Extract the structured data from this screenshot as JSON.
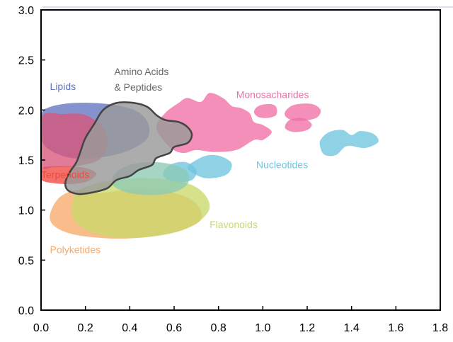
{
  "chart_data": {
    "type": "area",
    "title": "",
    "xlabel": "",
    "ylabel": "",
    "xlim": [
      0.0,
      1.8
    ],
    "ylim": [
      0.0,
      3.0
    ],
    "x_ticks": [
      "0.0",
      "0.2",
      "0.4",
      "0.6",
      "0.8",
      "1.0",
      "1.2",
      "1.4",
      "1.6",
      "1.8"
    ],
    "y_ticks": [
      "0.0",
      "0.5",
      "1.0",
      "1.5",
      "2.0",
      "2.5",
      "3.0"
    ],
    "grid": false,
    "legend": "none",
    "series": [
      {
        "name": "Polyketides",
        "color": "#f7a96a",
        "label": {
          "text": "Polyketides",
          "x": 0.04,
          "y": 0.57
        },
        "blobs": [
          [
            [
              0.04,
              0.95
            ],
            [
              0.08,
              1.12
            ],
            [
              0.16,
              1.2
            ],
            [
              0.26,
              1.17
            ],
            [
              0.38,
              1.2
            ],
            [
              0.5,
              1.2
            ],
            [
              0.6,
              1.17
            ],
            [
              0.68,
              1.1
            ],
            [
              0.72,
              1.0
            ],
            [
              0.72,
              0.9
            ],
            [
              0.66,
              0.82
            ],
            [
              0.56,
              0.76
            ],
            [
              0.42,
              0.72
            ],
            [
              0.28,
              0.72
            ],
            [
              0.14,
              0.76
            ],
            [
              0.06,
              0.84
            ]
          ]
        ]
      },
      {
        "name": "Terpenoids",
        "color": "#ee4a3f",
        "label": {
          "text": "Terpenoids",
          "x": 0.0,
          "y": 1.32
        },
        "blobs": [
          [
            [
              0.0,
              1.3
            ],
            [
              0.0,
              1.42
            ],
            [
              0.1,
              1.44
            ],
            [
              0.2,
              1.42
            ],
            [
              0.25,
              1.36
            ],
            [
              0.2,
              1.28
            ],
            [
              0.1,
              1.26
            ]
          ]
        ]
      },
      {
        "name": "Lipids",
        "color": "#6275c0",
        "label": {
          "text": "Lipids",
          "x": 0.04,
          "y": 2.2
        },
        "blobs": [
          [
            [
              0.0,
              1.95
            ],
            [
              0.04,
              2.03
            ],
            [
              0.15,
              2.07
            ],
            [
              0.3,
              2.06
            ],
            [
              0.42,
              2.0
            ],
            [
              0.48,
              1.88
            ],
            [
              0.48,
              1.72
            ],
            [
              0.4,
              1.6
            ],
            [
              0.28,
              1.53
            ],
            [
              0.14,
              1.52
            ],
            [
              0.04,
              1.6
            ],
            [
              0.0,
              1.72
            ]
          ]
        ]
      },
      {
        "name": "Terpenoids-upper",
        "color": "#d9567a",
        "blobs": [
          [
            [
              0.0,
              1.45
            ],
            [
              0.0,
              1.92
            ],
            [
              0.1,
              1.96
            ],
            [
              0.2,
              1.95
            ],
            [
              0.28,
              1.82
            ],
            [
              0.3,
              1.65
            ],
            [
              0.26,
              1.5
            ],
            [
              0.16,
              1.44
            ],
            [
              0.06,
              1.43
            ]
          ]
        ]
      },
      {
        "name": "Monosacharides",
        "color": "#ef6fa5",
        "label": {
          "text": "Monosacharides",
          "x": 0.88,
          "y": 2.12
        },
        "blobs": [
          [
            [
              0.52,
              1.82
            ],
            [
              0.56,
              1.97
            ],
            [
              0.62,
              2.07
            ],
            [
              0.66,
              2.12
            ],
            [
              0.72,
              2.08
            ],
            [
              0.76,
              2.17
            ],
            [
              0.82,
              2.12
            ],
            [
              0.86,
              2.04
            ],
            [
              0.9,
              2.02
            ],
            [
              0.94,
              1.97
            ],
            [
              0.96,
              1.88
            ],
            [
              1.0,
              1.85
            ],
            [
              1.04,
              1.78
            ],
            [
              1.0,
              1.7
            ],
            [
              0.96,
              1.7
            ],
            [
              0.88,
              1.6
            ],
            [
              0.78,
              1.58
            ],
            [
              0.7,
              1.6
            ],
            [
              0.64,
              1.57
            ],
            [
              0.58,
              1.63
            ]
          ],
          [
            [
              0.96,
              1.98
            ],
            [
              0.98,
              2.04
            ],
            [
              1.03,
              2.06
            ],
            [
              1.06,
              2.03
            ],
            [
              1.06,
              1.95
            ],
            [
              1.02,
              1.92
            ],
            [
              0.98,
              1.93
            ]
          ],
          [
            [
              1.1,
              1.98
            ],
            [
              1.14,
              2.05
            ],
            [
              1.22,
              2.06
            ],
            [
              1.26,
              2.0
            ],
            [
              1.24,
              1.92
            ],
            [
              1.16,
              1.89
            ],
            [
              1.11,
              1.92
            ]
          ],
          [
            [
              1.1,
              1.82
            ],
            [
              1.12,
              1.9
            ],
            [
              1.18,
              1.92
            ],
            [
              1.22,
              1.86
            ],
            [
              1.2,
              1.8
            ],
            [
              1.14,
              1.78
            ]
          ]
        ]
      },
      {
        "name": "Nucleotides",
        "color": "#6fc5df",
        "label": {
          "text": "Nucleotides",
          "x": 0.97,
          "y": 1.42
        },
        "blobs": [
          [
            [
              0.66,
              1.42
            ],
            [
              0.7,
              1.5
            ],
            [
              0.76,
              1.55
            ],
            [
              0.82,
              1.53
            ],
            [
              0.86,
              1.46
            ],
            [
              0.84,
              1.36
            ],
            [
              0.78,
              1.32
            ],
            [
              0.72,
              1.33
            ]
          ],
          [
            [
              0.55,
              1.35
            ],
            [
              0.58,
              1.45
            ],
            [
              0.65,
              1.48
            ],
            [
              0.7,
              1.4
            ],
            [
              0.68,
              1.3
            ],
            [
              0.6,
              1.28
            ]
          ],
          [
            [
              1.26,
              1.7
            ],
            [
              1.3,
              1.78
            ],
            [
              1.36,
              1.8
            ],
            [
              1.4,
              1.75
            ],
            [
              1.44,
              1.79
            ],
            [
              1.5,
              1.76
            ],
            [
              1.52,
              1.68
            ],
            [
              1.46,
              1.62
            ],
            [
              1.38,
              1.64
            ],
            [
              1.33,
              1.55
            ],
            [
              1.28,
              1.55
            ],
            [
              1.26,
              1.62
            ]
          ]
        ]
      },
      {
        "name": "Flavonoids",
        "color": "#c9d96a",
        "label": {
          "text": "Flavonoids",
          "x": 0.76,
          "y": 0.82
        },
        "blobs": [
          [
            [
              0.14,
              1.05
            ],
            [
              0.16,
              1.18
            ],
            [
              0.24,
              1.26
            ],
            [
              0.34,
              1.3
            ],
            [
              0.46,
              1.32
            ],
            [
              0.58,
              1.3
            ],
            [
              0.68,
              1.25
            ],
            [
              0.74,
              1.15
            ],
            [
              0.76,
              1.02
            ],
            [
              0.72,
              0.9
            ],
            [
              0.64,
              0.8
            ],
            [
              0.52,
              0.74
            ],
            [
              0.38,
              0.72
            ],
            [
              0.25,
              0.76
            ],
            [
              0.17,
              0.85
            ],
            [
              0.14,
              0.95
            ]
          ]
        ]
      },
      {
        "name": "Teal-overlap",
        "color": "#8cc9b4",
        "blobs": [
          [
            [
              0.32,
              1.28
            ],
            [
              0.34,
              1.38
            ],
            [
              0.4,
              1.45
            ],
            [
              0.5,
              1.48
            ],
            [
              0.6,
              1.45
            ],
            [
              0.66,
              1.38
            ],
            [
              0.66,
              1.26
            ],
            [
              0.6,
              1.18
            ],
            [
              0.5,
              1.15
            ],
            [
              0.4,
              1.17
            ],
            [
              0.34,
              1.22
            ]
          ]
        ]
      },
      {
        "name": "Amino Acids & Peptides",
        "color": "#9a9a9a",
        "stroke": "#444444",
        "label": {
          "text": "Amino Acids",
          "text2": "& Peptides",
          "x": 0.33,
          "y": 2.35
        },
        "blobs": [
          [
            [
              0.24,
              1.86
            ],
            [
              0.28,
              2.0
            ],
            [
              0.34,
              2.07
            ],
            [
              0.42,
              2.07
            ],
            [
              0.48,
              2.03
            ],
            [
              0.52,
              1.95
            ],
            [
              0.56,
              1.9
            ],
            [
              0.62,
              1.88
            ],
            [
              0.66,
              1.83
            ],
            [
              0.68,
              1.75
            ],
            [
              0.66,
              1.67
            ],
            [
              0.6,
              1.63
            ],
            [
              0.58,
              1.57
            ],
            [
              0.52,
              1.52
            ],
            [
              0.5,
              1.45
            ],
            [
              0.44,
              1.4
            ],
            [
              0.4,
              1.34
            ],
            [
              0.34,
              1.3
            ],
            [
              0.3,
              1.22
            ],
            [
              0.24,
              1.18
            ],
            [
              0.17,
              1.16
            ],
            [
              0.12,
              1.2
            ],
            [
              0.11,
              1.28
            ],
            [
              0.13,
              1.38
            ],
            [
              0.16,
              1.48
            ],
            [
              0.18,
              1.6
            ],
            [
              0.2,
              1.72
            ]
          ]
        ]
      }
    ]
  }
}
